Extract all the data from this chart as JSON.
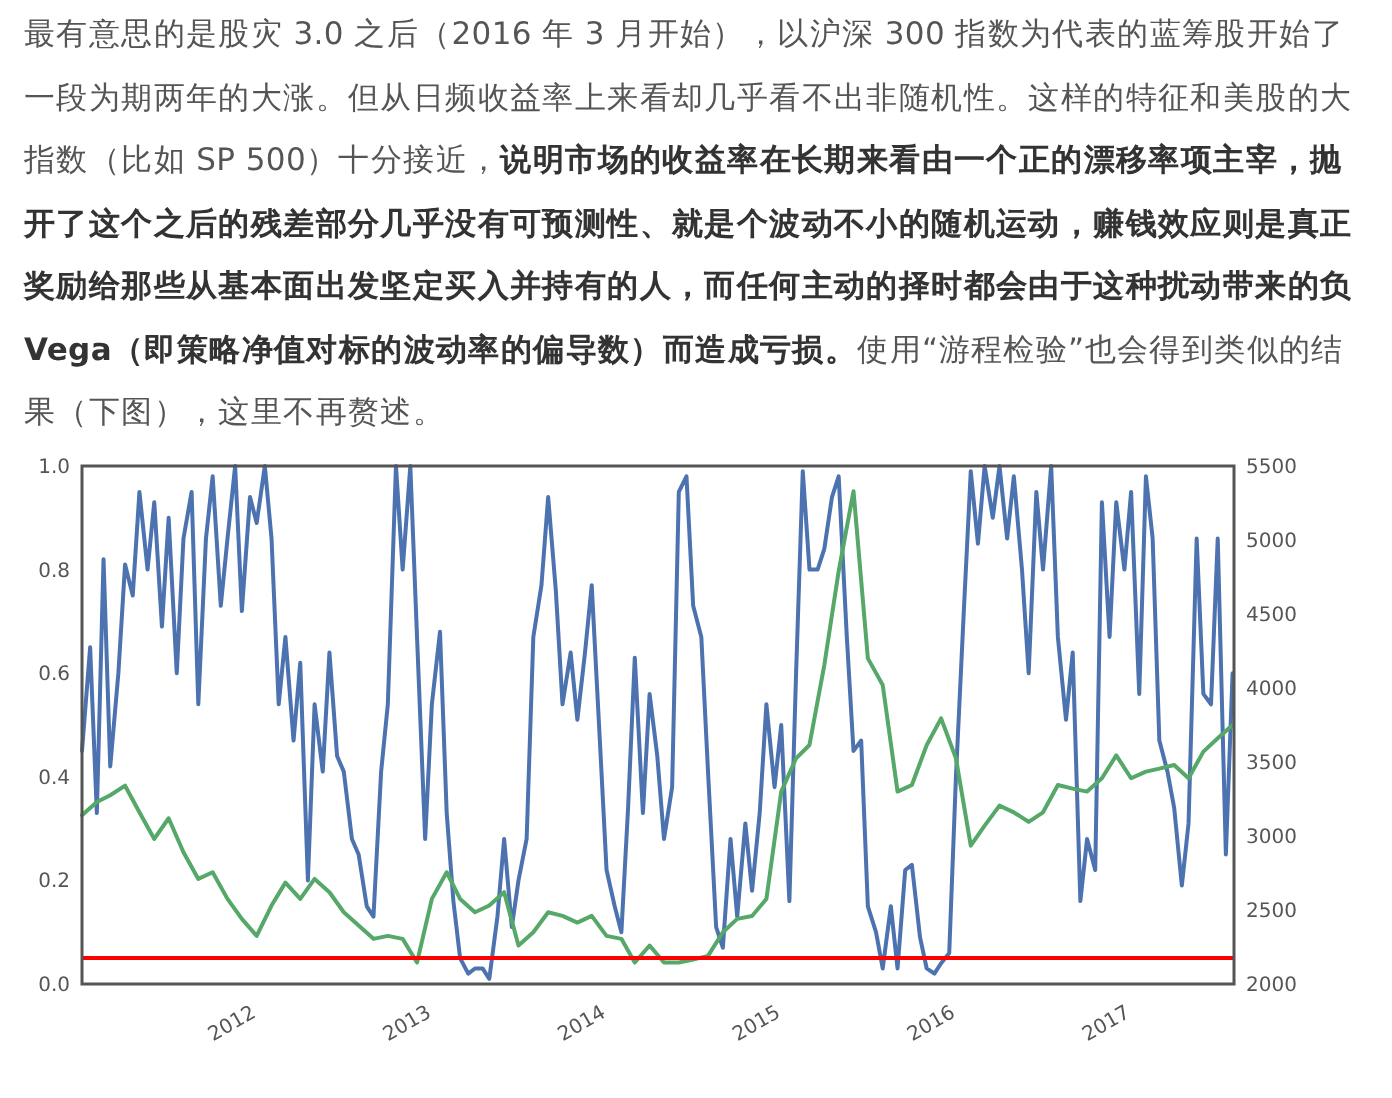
{
  "chart_data": {
    "type": "line",
    "annotations": [
      "最有意思的是股灾 3.0 之后（2016 年 3 月开始），以沪深 300 指数为代表的蓝筹股开始了一段为期两年的大涨。但从日频收益率上来看却几乎看不出非随机性。这样的特征和美股的大指数（比如 SP 500）十分接近，",
      "说明市场的收益率在长期来看由一个正的漂移率项主宰，抛开了这个之后的残差部分几乎没有可预测性、就是个波动不小的随机运动，赚钱效应则是真正奖励给那些从基本面出发坚定买入并持有的人，而任何主动的择时都会由于这种扰动带来的负 Vega（即策略净值对标的波动率的偏导数）而造成亏损。",
      "使用“游程检验”也会得到类似的结果（下图），这里不再赘述。"
    ],
    "xlim": [
      "2011-01-15",
      "2017-08-18"
    ],
    "xticks": [
      "2012",
      "2013",
      "2014",
      "2015",
      "2016",
      "2017"
    ],
    "ylim": [
      0,
      1
    ],
    "yticks": [
      {
        "value": 0,
        "label": "0.0"
      },
      {
        "value": 0.2,
        "label": "0.2"
      },
      {
        "value": 0.4,
        "label": "0.4"
      },
      {
        "value": 0.6,
        "label": "0.6"
      },
      {
        "value": 0.8,
        "label": "0.8"
      },
      {
        "value": 1,
        "label": "1.0"
      }
    ],
    "y2lim": [
      2000,
      5500
    ],
    "y2ticks": [
      2000,
      2500,
      3000,
      3500,
      4000,
      4500,
      5000,
      5500
    ],
    "ref_lines": [
      {
        "axis": "y",
        "value": 0.05,
        "color": "#ff0000"
      }
    ],
    "series": [
      {
        "color": "#4c72b0",
        "x": [
          "2011-01-15",
          "2011-02-01",
          "2011-02-15",
          "2011-03-01",
          "2011-03-15",
          "2011-04-01",
          "2011-04-15",
          "2011-05-01",
          "2011-05-15",
          "2011-06-01",
          "2011-06-15",
          "2011-07-01",
          "2011-07-15",
          "2011-08-01",
          "2011-08-15",
          "2011-09-01",
          "2011-09-15",
          "2011-10-01",
          "2011-10-15",
          "2011-11-01",
          "2011-11-15",
          "2011-12-01",
          "2011-12-15",
          "2012-01-01",
          "2012-01-15",
          "2012-02-01",
          "2012-02-15",
          "2012-03-01",
          "2012-03-15",
          "2012-04-01",
          "2012-04-15",
          "2012-05-01",
          "2012-05-15",
          "2012-06-01",
          "2012-06-15",
          "2012-07-01",
          "2012-07-15",
          "2012-08-01",
          "2012-08-15",
          "2012-09-01",
          "2012-09-15",
          "2012-10-01",
          "2012-10-15",
          "2012-11-01",
          "2012-11-15",
          "2012-12-01",
          "2012-12-15",
          "2013-01-01",
          "2013-01-15",
          "2013-02-01",
          "2013-02-15",
          "2013-03-01",
          "2013-03-15",
          "2013-04-01",
          "2013-04-15",
          "2013-05-01",
          "2013-05-15",
          "2013-06-01",
          "2013-06-15",
          "2013-07-01",
          "2013-07-15",
          "2013-08-01",
          "2013-08-15",
          "2013-09-01",
          "2013-09-15",
          "2013-10-01",
          "2013-10-15",
          "2013-11-01",
          "2013-11-15",
          "2013-12-01",
          "2013-12-15",
          "2014-01-01",
          "2014-01-15",
          "2014-02-01",
          "2014-02-15",
          "2014-03-01",
          "2014-03-15",
          "2014-04-01",
          "2014-04-15",
          "2014-05-01",
          "2014-05-15",
          "2014-06-01",
          "2014-06-15",
          "2014-07-01",
          "2014-07-15",
          "2014-08-01",
          "2014-08-15",
          "2014-09-01",
          "2014-09-15",
          "2014-10-01",
          "2014-10-15",
          "2014-11-01",
          "2014-11-15",
          "2014-12-01",
          "2014-12-15",
          "2015-01-01",
          "2015-01-15",
          "2015-02-01",
          "2015-02-15",
          "2015-03-01",
          "2015-03-15",
          "2015-04-01",
          "2015-04-15",
          "2015-05-01",
          "2015-05-15",
          "2015-06-01",
          "2015-06-15",
          "2015-07-01",
          "2015-07-15",
          "2015-08-01",
          "2015-08-15",
          "2015-09-01",
          "2015-09-15",
          "2015-10-01",
          "2015-10-15",
          "2015-11-01",
          "2015-11-15",
          "2015-12-01",
          "2015-12-15",
          "2016-01-01",
          "2016-01-15",
          "2016-02-01",
          "2016-02-15",
          "2016-03-01",
          "2016-03-15",
          "2016-04-01",
          "2016-04-15",
          "2016-05-01",
          "2016-05-15",
          "2016-06-01",
          "2016-06-15",
          "2016-07-01",
          "2016-07-15",
          "2016-08-01",
          "2016-08-15",
          "2016-09-01",
          "2016-09-15",
          "2016-10-01",
          "2016-10-15",
          "2016-11-01",
          "2016-11-15",
          "2016-12-01",
          "2016-12-15",
          "2017-01-01",
          "2017-01-15",
          "2017-02-01",
          "2017-02-15",
          "2017-03-01",
          "2017-03-15",
          "2017-04-01",
          "2017-04-15",
          "2017-05-01",
          "2017-05-15",
          "2017-06-01",
          "2017-06-15",
          "2017-07-01",
          "2017-07-15",
          "2017-08-01",
          "2017-08-15"
        ],
        "values": [
          0.45,
          0.65,
          0.33,
          0.82,
          0.42,
          0.6,
          0.81,
          0.75,
          0.95,
          0.8,
          0.93,
          0.69,
          0.9,
          0.6,
          0.86,
          0.95,
          0.54,
          0.86,
          0.98,
          0.73,
          0.86,
          1.0,
          0.72,
          0.94,
          0.89,
          1.0,
          0.86,
          0.54,
          0.67,
          0.47,
          0.62,
          0.2,
          0.54,
          0.41,
          0.64,
          0.44,
          0.41,
          0.28,
          0.25,
          0.15,
          0.13,
          0.41,
          0.54,
          1.0,
          0.8,
          1.0,
          0.67,
          0.28,
          0.54,
          0.68,
          0.33,
          0.16,
          0.05,
          0.02,
          0.03,
          0.03,
          0.01,
          0.13,
          0.28,
          0.11,
          0.2,
          0.28,
          0.67,
          0.77,
          0.94,
          0.76,
          0.54,
          0.64,
          0.51,
          0.64,
          0.77,
          0.47,
          0.22,
          0.15,
          0.1,
          0.34,
          0.63,
          0.33,
          0.56,
          0.44,
          0.28,
          0.38,
          0.95,
          0.98,
          0.73,
          0.67,
          0.41,
          0.11,
          0.07,
          0.28,
          0.13,
          0.31,
          0.18,
          0.33,
          0.54,
          0.38,
          0.5,
          0.16,
          0.6,
          0.99,
          0.8,
          0.8,
          0.84,
          0.94,
          0.98,
          0.67,
          0.45,
          0.47,
          0.15,
          0.1,
          0.03,
          0.15,
          0.03,
          0.22,
          0.23,
          0.09,
          0.03,
          0.02,
          0.04,
          0.06,
          0.4,
          0.73,
          0.99,
          0.85,
          1.0,
          0.9,
          1.0,
          0.86,
          0.98,
          0.8,
          0.6,
          0.95,
          0.8,
          1.0,
          0.67,
          0.51,
          0.64,
          0.16,
          0.28,
          0.22,
          0.93,
          0.67,
          0.93,
          0.8,
          0.95,
          0.56,
          0.98,
          0.86,
          0.47,
          0.41,
          0.34,
          0.19,
          0.31,
          0.86,
          0.56,
          0.54,
          0.86,
          0.25,
          0.6
        ]
      },
      {
        "color": "#55a868",
        "axis": "y2",
        "x": [
          "2011-01-15",
          "2011-02-15",
          "2011-03-15",
          "2011-04-15",
          "2011-05-15",
          "2011-06-15",
          "2011-07-15",
          "2011-08-15",
          "2011-09-15",
          "2011-10-15",
          "2011-11-15",
          "2011-12-15",
          "2012-01-15",
          "2012-02-15",
          "2012-03-15",
          "2012-04-15",
          "2012-05-15",
          "2012-06-15",
          "2012-07-15",
          "2012-08-15",
          "2012-09-15",
          "2012-10-15",
          "2012-11-15",
          "2012-12-15",
          "2013-01-15",
          "2013-02-15",
          "2013-03-15",
          "2013-04-15",
          "2013-05-15",
          "2013-06-15",
          "2013-07-15",
          "2013-08-15",
          "2013-09-15",
          "2013-10-15",
          "2013-11-15",
          "2013-12-15",
          "2014-01-15",
          "2014-02-15",
          "2014-03-15",
          "2014-04-15",
          "2014-05-15",
          "2014-06-15",
          "2014-07-15",
          "2014-08-15",
          "2014-09-15",
          "2014-10-15",
          "2014-11-15",
          "2014-12-15",
          "2015-01-15",
          "2015-02-15",
          "2015-03-15",
          "2015-04-15",
          "2015-05-15",
          "2015-06-15",
          "2015-07-15",
          "2015-08-15",
          "2015-09-15",
          "2015-10-15",
          "2015-11-15",
          "2015-12-15",
          "2016-01-15",
          "2016-02-15",
          "2016-03-15",
          "2016-04-15",
          "2016-05-15",
          "2016-06-15",
          "2016-07-15",
          "2016-08-15",
          "2016-09-15",
          "2016-10-15",
          "2016-11-15",
          "2016-12-15",
          "2017-01-15",
          "2017-02-15",
          "2017-03-15",
          "2017-04-15",
          "2017-05-15",
          "2017-06-15",
          "2017-07-15",
          "2017-08-15"
        ],
        "values": [
          3140,
          3230,
          3275,
          3340,
          3160,
          2980,
          3120,
          2890,
          2710,
          2755,
          2575,
          2440,
          2325,
          2530,
          2685,
          2575,
          2710,
          2620,
          2485,
          2395,
          2305,
          2325,
          2305,
          2145,
          2575,
          2755,
          2575,
          2485,
          2530,
          2620,
          2260,
          2350,
          2485,
          2460,
          2415,
          2460,
          2325,
          2305,
          2145,
          2260,
          2145,
          2145,
          2165,
          2190,
          2350,
          2440,
          2460,
          2575,
          3300,
          3525,
          3615,
          4155,
          4790,
          5330,
          4200,
          4020,
          3300,
          3345,
          3615,
          3795,
          3525,
          2935,
          3070,
          3205,
          3160,
          3095,
          3160,
          3345,
          3320,
          3300,
          3390,
          3545,
          3390,
          3435,
          3455,
          3480,
          3390,
          3570,
          3660,
          3750
        ]
      }
    ]
  }
}
